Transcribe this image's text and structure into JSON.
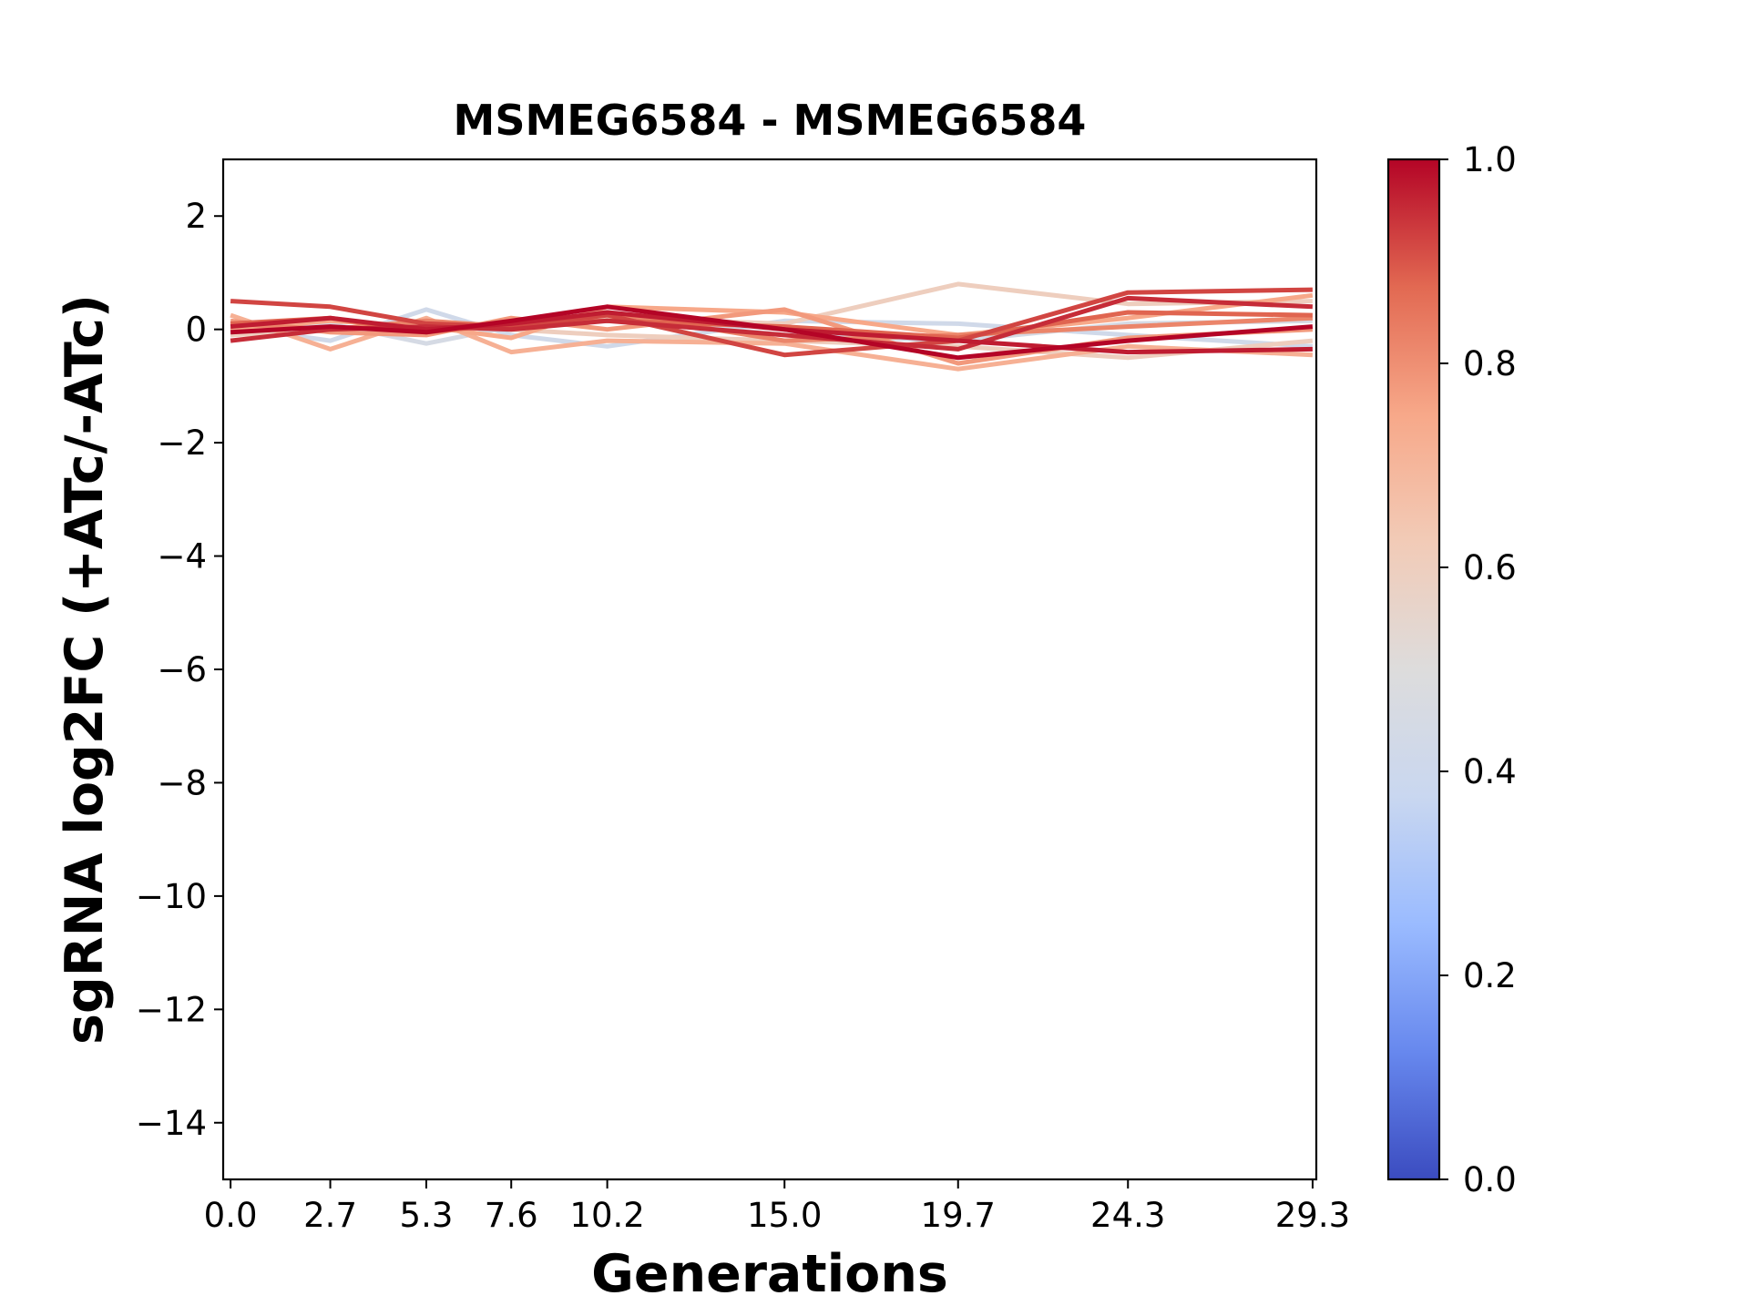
{
  "chart_data": {
    "type": "line",
    "title": "MSMEG6584 - MSMEG6584",
    "xlabel": "Generations",
    "ylabel": "sgRNA log2FC (+ATc/-ATc)",
    "x": [
      0.0,
      2.7,
      5.3,
      7.6,
      10.2,
      15.0,
      19.7,
      24.3,
      29.3
    ],
    "x_tick_labels": [
      "0.0",
      "2.7",
      "5.3",
      "7.6",
      "10.2",
      "15.0",
      "19.7",
      "24.3",
      "29.3"
    ],
    "xlim": [
      -0.2,
      29.4
    ],
    "ylim": [
      -15,
      3
    ],
    "y_ticks": [
      2,
      0,
      -2,
      -4,
      -6,
      -8,
      -10,
      -12,
      -14
    ],
    "y_tick_labels": [
      "2",
      "0",
      "−2",
      "−4",
      "−6",
      "−8",
      "−10",
      "−12",
      "−14"
    ],
    "grid": false,
    "colorbar": {
      "colormap": "coolwarm",
      "range": [
        0.0,
        1.0
      ],
      "tick_values": [
        0.0,
        0.2,
        0.4,
        0.6,
        0.8,
        1.0
      ],
      "tick_labels": [
        "0.0",
        "0.2",
        "0.4",
        "0.6",
        "0.8",
        "1.0"
      ],
      "colors": [
        "#3b4cc0",
        "#6788ee",
        "#9abbff",
        "#c9d7f0",
        "#dddcdc",
        "#f2cbb7",
        "#f7a889",
        "#e26952",
        "#b40426"
      ]
    },
    "series": [
      {
        "color_value": 0.42,
        "values": [
          0.05,
          -0.2,
          0.35,
          -0.1,
          -0.3,
          0.15,
          0.1,
          -0.1,
          -0.3
        ]
      },
      {
        "color_value": 0.45,
        "values": [
          -0.1,
          0.1,
          -0.25,
          0.05,
          0.2,
          -0.1,
          -0.2,
          0.1,
          0.15
        ]
      },
      {
        "color_value": 0.6,
        "values": [
          0.1,
          0.0,
          0.15,
          0.0,
          0.2,
          0.1,
          0.8,
          0.45,
          0.5
        ]
      },
      {
        "color_value": 0.6,
        "values": [
          -0.1,
          0.0,
          0.1,
          0.0,
          -0.1,
          -0.2,
          -0.3,
          -0.5,
          -0.2
        ]
      },
      {
        "color_value": 0.72,
        "values": [
          0.25,
          -0.35,
          0.2,
          -0.4,
          -0.2,
          -0.25,
          -0.7,
          -0.3,
          -0.45
        ]
      },
      {
        "color_value": 0.75,
        "values": [
          0.0,
          0.15,
          0.05,
          -0.15,
          0.4,
          0.3,
          -0.1,
          0.2,
          0.6
        ]
      },
      {
        "color_value": 0.78,
        "values": [
          0.15,
          -0.05,
          -0.1,
          0.2,
          0.0,
          0.35,
          -0.6,
          -0.15,
          0.0
        ]
      },
      {
        "color_value": 0.82,
        "values": [
          0.1,
          0.0,
          0.15,
          0.05,
          0.3,
          -0.2,
          -0.1,
          0.05,
          0.2
        ]
      },
      {
        "color_value": 0.88,
        "values": [
          0.1,
          0.2,
          -0.05,
          0.1,
          0.15,
          0.05,
          -0.15,
          0.3,
          0.25
        ]
      },
      {
        "color_value": 0.92,
        "values": [
          0.5,
          0.4,
          0.1,
          0.05,
          0.25,
          -0.45,
          -0.2,
          0.65,
          0.7
        ]
      },
      {
        "color_value": 0.95,
        "values": [
          -0.2,
          0.0,
          0.05,
          0.0,
          0.15,
          -0.1,
          -0.35,
          0.55,
          0.4
        ]
      },
      {
        "color_value": 0.97,
        "values": [
          0.05,
          0.2,
          0.0,
          0.1,
          0.3,
          0.0,
          -0.2,
          -0.4,
          -0.35
        ]
      },
      {
        "color_value": 1.0,
        "values": [
          -0.05,
          0.05,
          -0.05,
          0.15,
          0.4,
          0.0,
          -0.5,
          -0.2,
          0.05
        ]
      }
    ]
  }
}
